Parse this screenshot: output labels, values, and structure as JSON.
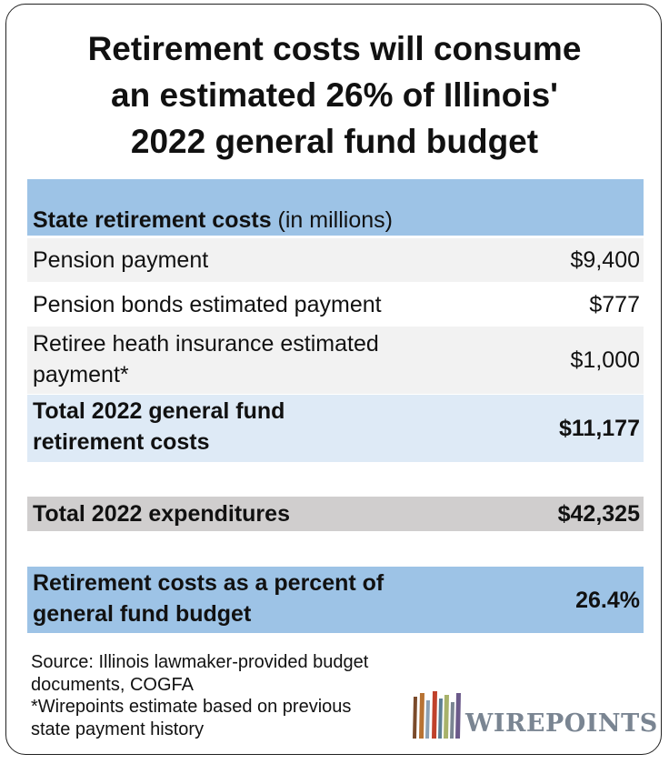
{
  "title": {
    "line1": "Retirement costs will consume",
    "line2": "an estimated 26% of Illinois'",
    "line3": "2022 general fund budget"
  },
  "table": {
    "header": {
      "label": "State retirement costs",
      "unit": " (in millions)"
    },
    "rows": [
      {
        "label": "Pension payment",
        "value": "$9,400"
      },
      {
        "label": "Pension bonds estimated payment",
        "value": "$777"
      },
      {
        "label_line1": "Retiree heath insurance estimated",
        "label_line2": "payment*",
        "value": "$1,000"
      },
      {
        "label_line1": "Total 2022 general fund",
        "label_line2": "retirement costs",
        "value": "$11,177"
      }
    ],
    "expenditures": {
      "label": "Total 2022 expenditures",
      "value": "$42,325"
    },
    "percent": {
      "label_line1": "Retirement costs as a percent of",
      "label_line2": "general fund budget",
      "value": "26.4%"
    }
  },
  "source": {
    "line1": "Source: Illinois lawmaker-provided budget",
    "line2": "documents, COGFA",
    "line3": "*Wirepoints estimate based on previous",
    "line4": "state payment history"
  },
  "logo": {
    "text": "WIREPOINTS",
    "icon": "wirepoints-logo-bars-icon"
  },
  "colors": {
    "header_blue": "#9dc3e6",
    "light_gray": "#f2f2f2",
    "light_blue": "#deeaf6",
    "mid_gray": "#d0cece",
    "logo_gray": "#7a8592"
  }
}
